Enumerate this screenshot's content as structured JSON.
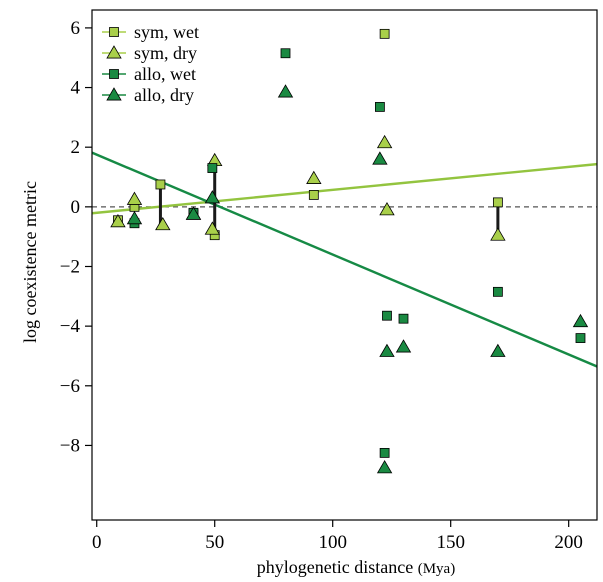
{
  "colors": {
    "light_green": "#a9cf4a",
    "dark_green": "#1a8a42",
    "sym_line": "#93c43f",
    "allo_line": "#168a45",
    "pair_line": "#1a1a1a",
    "zero_line": "#555555"
  },
  "chart_data": {
    "type": "scatter",
    "title": "",
    "xlabel_main": "phylogenetic distance",
    "xlabel_unit": "(Mya)",
    "ylabel": "log coexistence metric",
    "xlim": [
      -2,
      212
    ],
    "ylim": [
      -10.5,
      6.6
    ],
    "xticks": [
      0,
      50,
      100,
      150,
      200
    ],
    "yticks": [
      -8,
      -6,
      -4,
      -2,
      0,
      2,
      4,
      6
    ],
    "grid": false,
    "legend_position": "top-left",
    "reference_line_y": 0,
    "series": [
      {
        "name": "sym, wet",
        "marker": "square",
        "color": "light_green",
        "points": [
          [
            9,
            -0.45
          ],
          [
            16,
            0.0
          ],
          [
            27,
            0.75
          ],
          [
            41,
            -0.25
          ],
          [
            50,
            -0.95
          ],
          [
            92,
            0.4
          ],
          [
            122,
            5.8
          ],
          [
            170,
            0.15
          ]
        ]
      },
      {
        "name": "sym, dry",
        "marker": "triangle",
        "color": "light_green",
        "points": [
          [
            9,
            -0.5
          ],
          [
            16,
            0.25
          ],
          [
            28,
            -0.6
          ],
          [
            41,
            -0.25
          ],
          [
            49,
            -0.75
          ],
          [
            50,
            1.55
          ],
          [
            92,
            0.95
          ],
          [
            122,
            2.15
          ],
          [
            123,
            -0.1
          ],
          [
            170,
            -0.95
          ]
        ]
      },
      {
        "name": "allo, wet",
        "marker": "square",
        "color": "dark_green",
        "points": [
          [
            16,
            -0.55
          ],
          [
            41,
            -0.2
          ],
          [
            49,
            1.3
          ],
          [
            80,
            5.15
          ],
          [
            120,
            3.35
          ],
          [
            122,
            -8.25
          ],
          [
            123,
            -3.65
          ],
          [
            130,
            -3.75
          ],
          [
            170,
            -2.85
          ],
          [
            205,
            -4.4
          ]
        ]
      },
      {
        "name": "allo, dry",
        "marker": "triangle",
        "color": "dark_green",
        "points": [
          [
            16,
            -0.4
          ],
          [
            41,
            -0.25
          ],
          [
            49,
            0.3
          ],
          [
            80,
            3.85
          ],
          [
            120,
            1.6
          ],
          [
            122,
            -8.75
          ],
          [
            123,
            -4.85
          ],
          [
            130,
            -4.7
          ],
          [
            170,
            -4.85
          ],
          [
            205,
            -3.85
          ]
        ]
      }
    ],
    "pair_lines": [
      {
        "x": 27,
        "y1": 0.75,
        "y2": -0.6
      },
      {
        "x": 50,
        "y1": 1.55,
        "y2": -0.95
      },
      {
        "x": 170,
        "y1": 0.15,
        "y2": -0.95
      }
    ],
    "regression_lines": [
      {
        "series": "sym",
        "color": "sym_line",
        "intercept": -0.2,
        "slope": 0.0077
      },
      {
        "series": "allo",
        "color": "allo_line",
        "intercept": 1.75,
        "slope": -0.0335
      }
    ]
  }
}
